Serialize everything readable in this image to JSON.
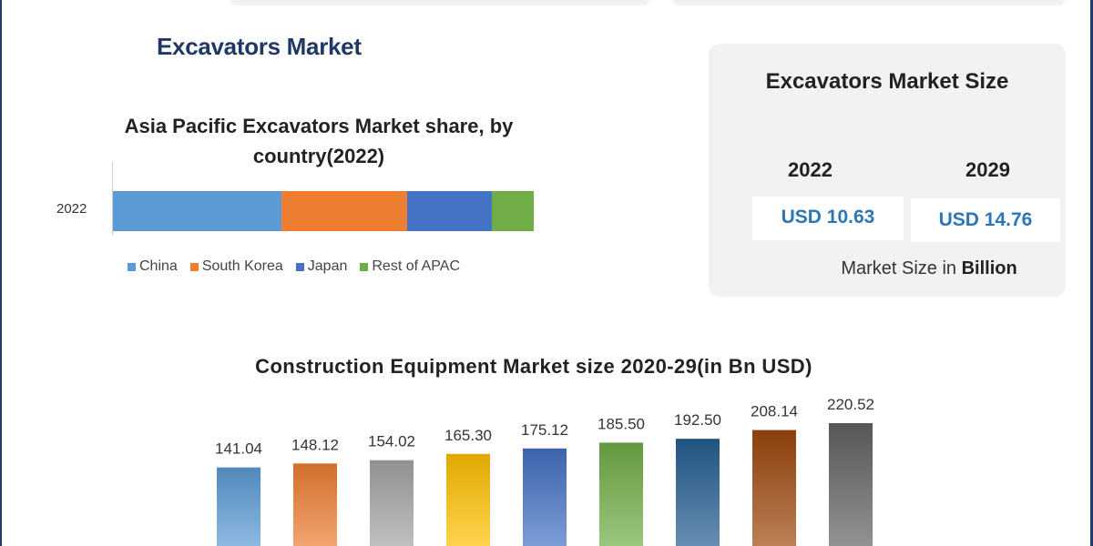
{
  "page": {
    "title": "Excavators Market"
  },
  "apac_chart": {
    "title": "Asia Pacific Excavators Market share, by country(2022)",
    "category": "2022"
  },
  "market_size_card": {
    "title": "Excavators Market Size",
    "year_a": "2022",
    "year_b": "2029",
    "value_a": "USD 10.63",
    "value_b": "USD 14.76",
    "unit_prefix": "Market Size in ",
    "unit_bold": "Billion"
  },
  "construction_chart": {
    "title": "Construction Equipment Market size 2020-29(in Bn USD)"
  },
  "chart_data": [
    {
      "type": "bar",
      "orientation": "horizontal",
      "stacked": true,
      "title": "Asia Pacific Excavators Market share, by country(2022)",
      "categories": [
        "2022"
      ],
      "series": [
        {
          "name": "China",
          "values": [
            40
          ],
          "color": "#5b9bd5"
        },
        {
          "name": "South Korea",
          "values": [
            30
          ],
          "color": "#ed7d31"
        },
        {
          "name": "Japan",
          "values": [
            20
          ],
          "color": "#4472c4"
        },
        {
          "name": "Rest of APAC",
          "values": [
            10
          ],
          "color": "#70ad47"
        }
      ],
      "legend": "bottom"
    },
    {
      "type": "bar",
      "title": "Construction Equipment Market size 2020-29(in Bn USD)",
      "values": [
        141.04,
        148.12,
        154.02,
        165.3,
        175.12,
        185.5,
        192.5,
        208.14,
        220.52
      ],
      "labels": [
        "141.04",
        "148.12",
        "154.02",
        "165.30",
        "175.12",
        "185.50",
        "192.50",
        "208.14",
        "220.52"
      ],
      "colors": [
        "#5b9bd5",
        "#ed7d31",
        "#a5a5a5",
        "#ffc000",
        "#4472c4",
        "#70ad47",
        "#255e91",
        "#9e480e",
        "#636363"
      ],
      "grid": false,
      "legend": "none"
    }
  ]
}
